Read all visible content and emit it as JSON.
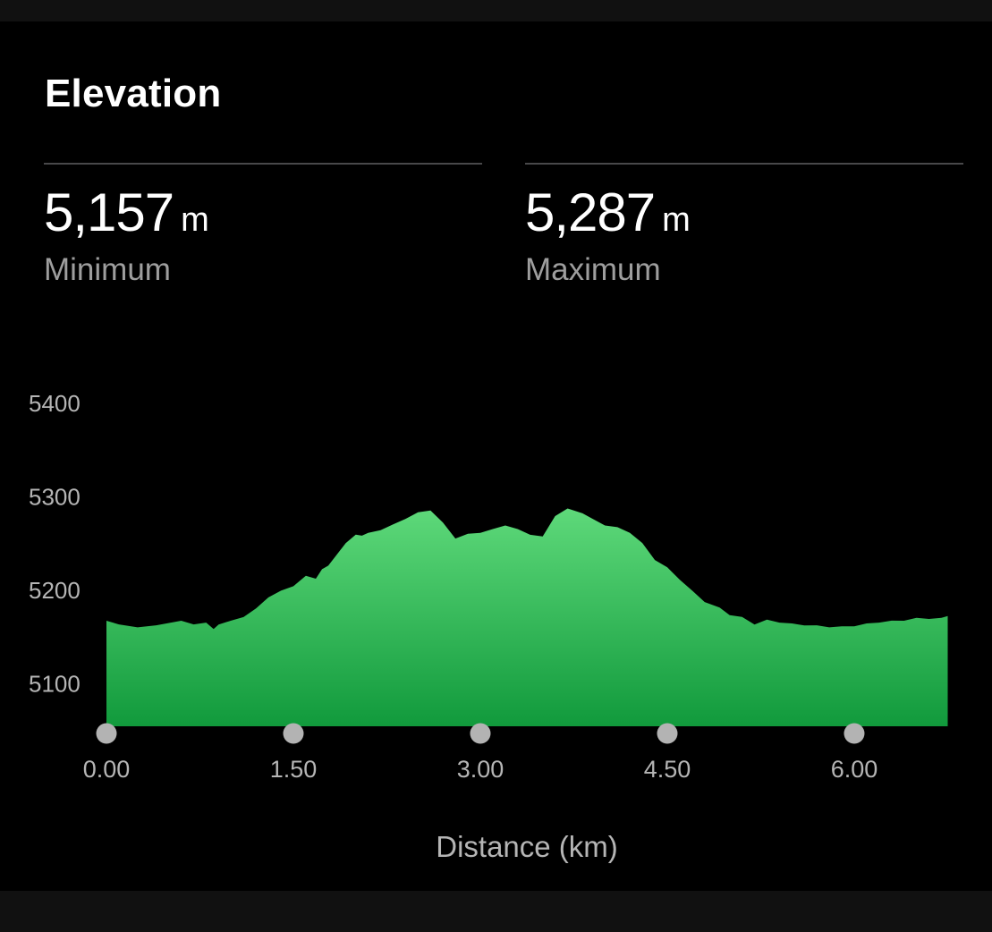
{
  "card": {
    "title": "Elevation",
    "minimum": {
      "value": "5,157",
      "unit": "m",
      "label": "Minimum"
    },
    "maximum": {
      "value": "5,287",
      "unit": "m",
      "label": "Maximum"
    }
  },
  "colors": {
    "background": "#000000",
    "area_top": "#5ed97a",
    "area_bottom": "#119a3c",
    "text_muted": "#b5b5b5",
    "marker": "#b3b3b3"
  },
  "chart_data": {
    "type": "area",
    "xlabel": "Distance (km)",
    "ylabel": "",
    "x_ticks": [
      "0.00",
      "1.50",
      "3.00",
      "4.50",
      "6.00"
    ],
    "y_ticks": [
      "5400",
      "5300",
      "5200",
      "5100"
    ],
    "xlim": [
      0,
      6.75
    ],
    "ylim": [
      5053,
      5400
    ],
    "series": [
      {
        "x": [
          0.0,
          0.1,
          0.25,
          0.4,
          0.6,
          0.7,
          0.8,
          0.86,
          0.9,
          1.0,
          1.1,
          1.2,
          1.3,
          1.4,
          1.5,
          1.6,
          1.68,
          1.73,
          1.78,
          1.85,
          1.92,
          2.0,
          2.05,
          2.1,
          2.2,
          2.3,
          2.4,
          2.5,
          2.6,
          2.7,
          2.8,
          2.9,
          3.0,
          3.1,
          3.2,
          3.3,
          3.4,
          3.5,
          3.6,
          3.7,
          3.82,
          3.9,
          4.0,
          4.1,
          4.2,
          4.3,
          4.4,
          4.5,
          4.6,
          4.7,
          4.8,
          4.92,
          5.0,
          5.1,
          5.2,
          5.3,
          5.4,
          5.5,
          5.6,
          5.7,
          5.8,
          5.9,
          6.0,
          6.1,
          6.2,
          6.3,
          6.4,
          6.5,
          6.6,
          6.7,
          6.75
        ],
        "values": [
          5168,
          5163,
          5161,
          5162,
          5168,
          5163,
          5166,
          5158,
          5164,
          5167,
          5172,
          5180,
          5193,
          5199,
          5205,
          5215,
          5213,
          5222,
          5227,
          5238,
          5251,
          5259,
          5259,
          5261,
          5265,
          5270,
          5277,
          5283,
          5286,
          5272,
          5256,
          5260,
          5262,
          5265,
          5270,
          5265,
          5260,
          5257,
          5280,
          5287,
          5283,
          5276,
          5270,
          5267,
          5262,
          5250,
          5233,
          5224,
          5212,
          5199,
          5188,
          5181,
          5174,
          5171,
          5164,
          5168,
          5166,
          5164,
          5163,
          5162,
          5161,
          5161,
          5162,
          5164,
          5166,
          5167,
          5168,
          5170,
          5170,
          5170,
          5173
        ]
      }
    ]
  }
}
